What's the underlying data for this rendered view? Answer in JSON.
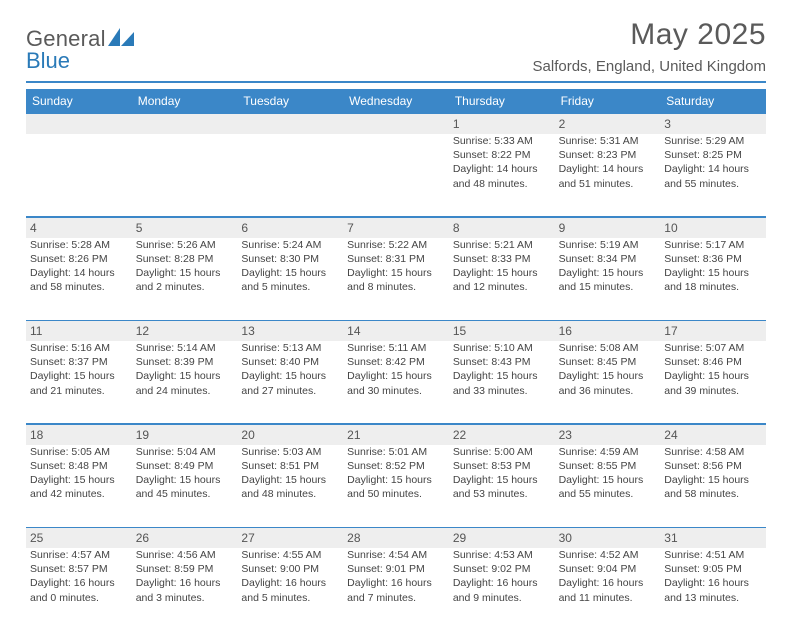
{
  "brand": {
    "name1": "General",
    "name2": "Blue"
  },
  "title": "May 2025",
  "location": "Salfords, England, United Kingdom",
  "colors": {
    "accent": "#3b87c8",
    "band": "#eeeeee",
    "text": "#444444",
    "heading": "#5a5a5a"
  },
  "dayNames": [
    "Sunday",
    "Monday",
    "Tuesday",
    "Wednesday",
    "Thursday",
    "Friday",
    "Saturday"
  ],
  "weeks": [
    [
      null,
      null,
      null,
      null,
      {
        "n": "1",
        "sr": "5:33 AM",
        "ss": "8:22 PM",
        "dl": "14 hours and 48 minutes."
      },
      {
        "n": "2",
        "sr": "5:31 AM",
        "ss": "8:23 PM",
        "dl": "14 hours and 51 minutes."
      },
      {
        "n": "3",
        "sr": "5:29 AM",
        "ss": "8:25 PM",
        "dl": "14 hours and 55 minutes."
      }
    ],
    [
      {
        "n": "4",
        "sr": "5:28 AM",
        "ss": "8:26 PM",
        "dl": "14 hours and 58 minutes."
      },
      {
        "n": "5",
        "sr": "5:26 AM",
        "ss": "8:28 PM",
        "dl": "15 hours and 2 minutes."
      },
      {
        "n": "6",
        "sr": "5:24 AM",
        "ss": "8:30 PM",
        "dl": "15 hours and 5 minutes."
      },
      {
        "n": "7",
        "sr": "5:22 AM",
        "ss": "8:31 PM",
        "dl": "15 hours and 8 minutes."
      },
      {
        "n": "8",
        "sr": "5:21 AM",
        "ss": "8:33 PM",
        "dl": "15 hours and 12 minutes."
      },
      {
        "n": "9",
        "sr": "5:19 AM",
        "ss": "8:34 PM",
        "dl": "15 hours and 15 minutes."
      },
      {
        "n": "10",
        "sr": "5:17 AM",
        "ss": "8:36 PM",
        "dl": "15 hours and 18 minutes."
      }
    ],
    [
      {
        "n": "11",
        "sr": "5:16 AM",
        "ss": "8:37 PM",
        "dl": "15 hours and 21 minutes."
      },
      {
        "n": "12",
        "sr": "5:14 AM",
        "ss": "8:39 PM",
        "dl": "15 hours and 24 minutes."
      },
      {
        "n": "13",
        "sr": "5:13 AM",
        "ss": "8:40 PM",
        "dl": "15 hours and 27 minutes."
      },
      {
        "n": "14",
        "sr": "5:11 AM",
        "ss": "8:42 PM",
        "dl": "15 hours and 30 minutes."
      },
      {
        "n": "15",
        "sr": "5:10 AM",
        "ss": "8:43 PM",
        "dl": "15 hours and 33 minutes."
      },
      {
        "n": "16",
        "sr": "5:08 AM",
        "ss": "8:45 PM",
        "dl": "15 hours and 36 minutes."
      },
      {
        "n": "17",
        "sr": "5:07 AM",
        "ss": "8:46 PM",
        "dl": "15 hours and 39 minutes."
      }
    ],
    [
      {
        "n": "18",
        "sr": "5:05 AM",
        "ss": "8:48 PM",
        "dl": "15 hours and 42 minutes."
      },
      {
        "n": "19",
        "sr": "5:04 AM",
        "ss": "8:49 PM",
        "dl": "15 hours and 45 minutes."
      },
      {
        "n": "20",
        "sr": "5:03 AM",
        "ss": "8:51 PM",
        "dl": "15 hours and 48 minutes."
      },
      {
        "n": "21",
        "sr": "5:01 AM",
        "ss": "8:52 PM",
        "dl": "15 hours and 50 minutes."
      },
      {
        "n": "22",
        "sr": "5:00 AM",
        "ss": "8:53 PM",
        "dl": "15 hours and 53 minutes."
      },
      {
        "n": "23",
        "sr": "4:59 AM",
        "ss": "8:55 PM",
        "dl": "15 hours and 55 minutes."
      },
      {
        "n": "24",
        "sr": "4:58 AM",
        "ss": "8:56 PM",
        "dl": "15 hours and 58 minutes."
      }
    ],
    [
      {
        "n": "25",
        "sr": "4:57 AM",
        "ss": "8:57 PM",
        "dl": "16 hours and 0 minutes."
      },
      {
        "n": "26",
        "sr": "4:56 AM",
        "ss": "8:59 PM",
        "dl": "16 hours and 3 minutes."
      },
      {
        "n": "27",
        "sr": "4:55 AM",
        "ss": "9:00 PM",
        "dl": "16 hours and 5 minutes."
      },
      {
        "n": "28",
        "sr": "4:54 AM",
        "ss": "9:01 PM",
        "dl": "16 hours and 7 minutes."
      },
      {
        "n": "29",
        "sr": "4:53 AM",
        "ss": "9:02 PM",
        "dl": "16 hours and 9 minutes."
      },
      {
        "n": "30",
        "sr": "4:52 AM",
        "ss": "9:04 PM",
        "dl": "16 hours and 11 minutes."
      },
      {
        "n": "31",
        "sr": "4:51 AM",
        "ss": "9:05 PM",
        "dl": "16 hours and 13 minutes."
      }
    ]
  ],
  "labels": {
    "sunrise": "Sunrise: ",
    "sunset": "Sunset: ",
    "daylight": "Daylight: "
  }
}
